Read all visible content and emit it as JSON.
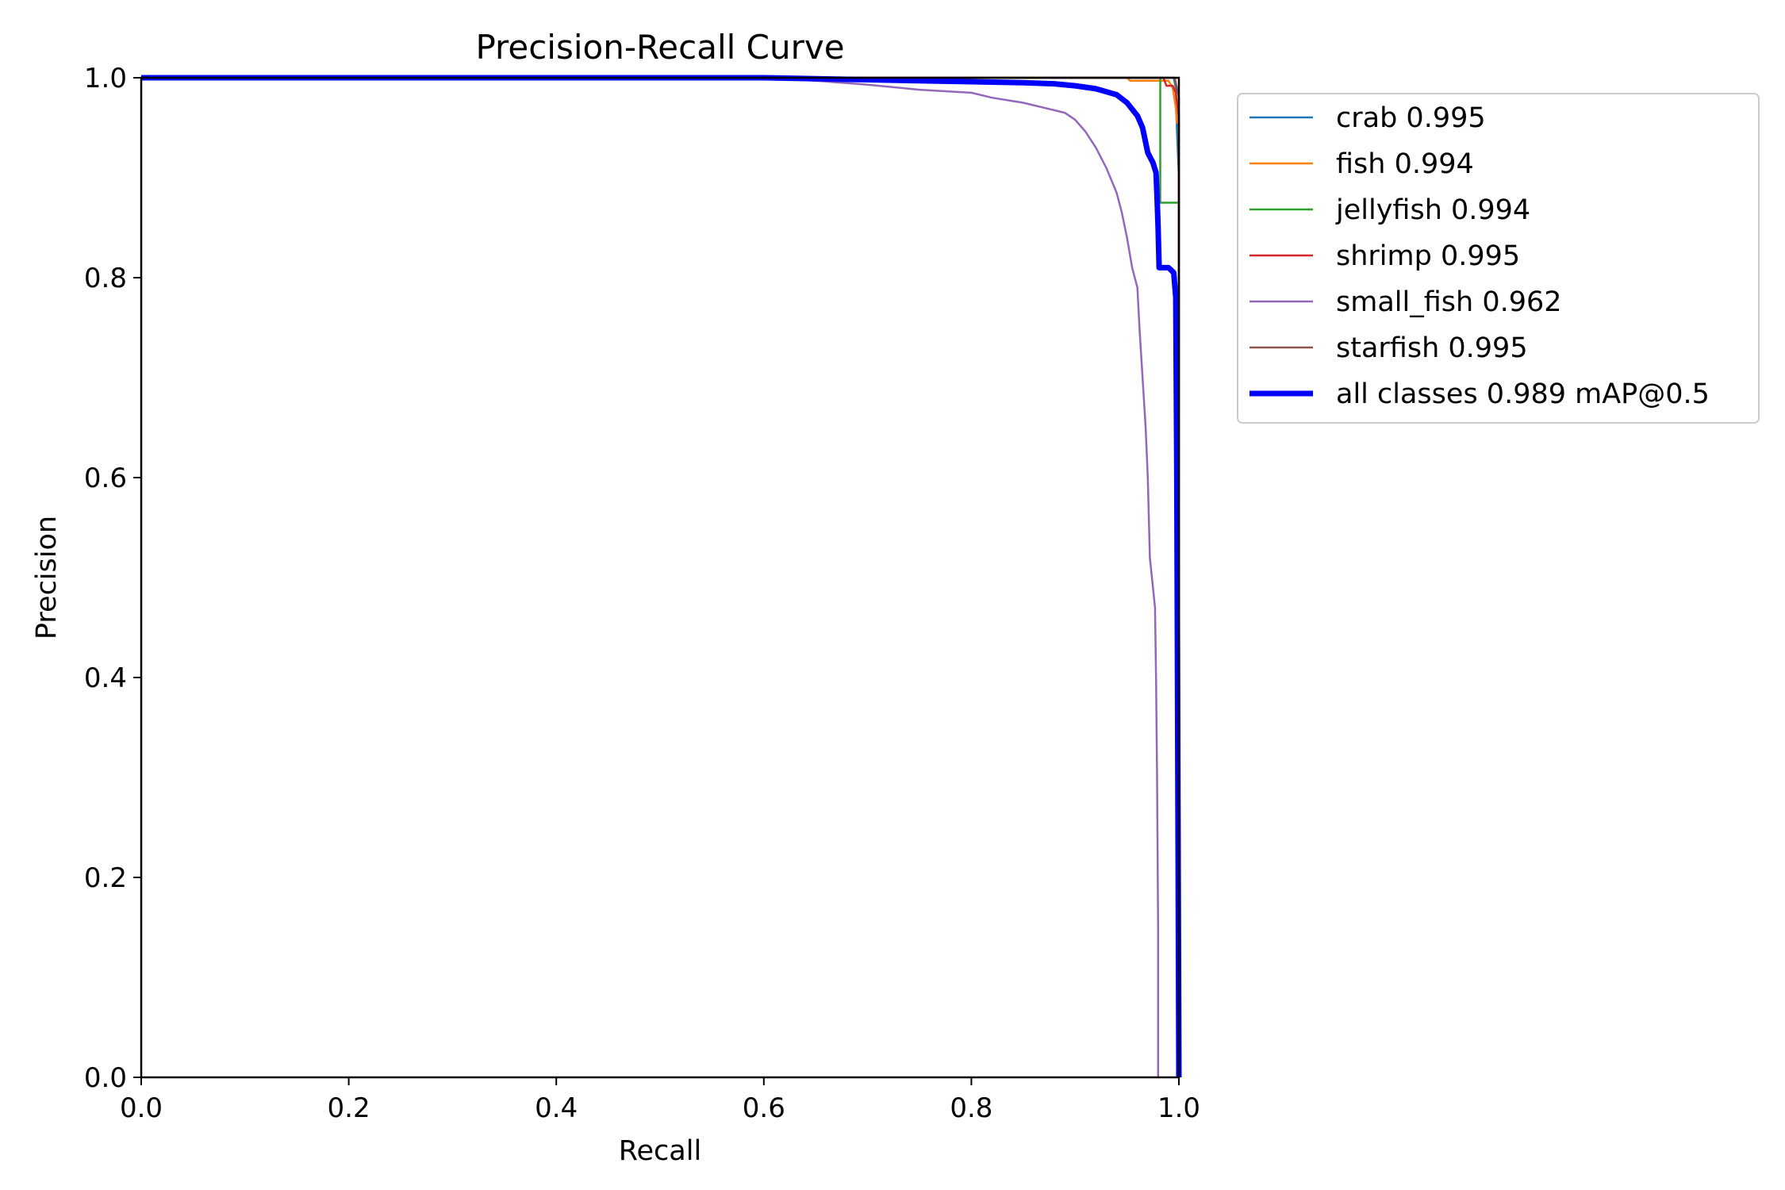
{
  "chart_data": {
    "type": "line",
    "title": "Precision-Recall Curve",
    "xlabel": "Recall",
    "ylabel": "Precision",
    "xlim": [
      0,
      1
    ],
    "ylim": [
      0,
      1
    ],
    "xticks": [
      "0.0",
      "0.2",
      "0.4",
      "0.6",
      "0.8",
      "1.0"
    ],
    "yticks": [
      "0.0",
      "0.2",
      "0.4",
      "0.6",
      "0.8",
      "1.0"
    ],
    "grid": false,
    "legend_position": "outside-top-right",
    "series": [
      {
        "name": "crab 0.995",
        "color": "#1f77b4",
        "width": "thin",
        "points": [
          [
            0,
            1.0
          ],
          [
            0.995,
            1.0
          ],
          [
            0.997,
            0.99
          ],
          [
            0.998,
            0.95
          ],
          [
            1.0,
            0.9
          ],
          [
            1.0,
            0.0
          ]
        ]
      },
      {
        "name": "fish 0.994",
        "color": "#ff7f0e",
        "width": "thin",
        "points": [
          [
            0,
            1.0
          ],
          [
            0.95,
            1.0
          ],
          [
            0.953,
            0.997
          ],
          [
            0.99,
            0.997
          ],
          [
            0.994,
            0.99
          ],
          [
            0.997,
            0.97
          ],
          [
            0.998,
            0.955
          ],
          [
            1.0,
            0.955
          ],
          [
            1.0,
            0.0
          ]
        ]
      },
      {
        "name": "jellyfish 0.994",
        "color": "#2ca02c",
        "width": "thin",
        "points": [
          [
            0,
            1.0
          ],
          [
            0.982,
            1.0
          ],
          [
            0.982,
            0.875
          ],
          [
            1.0,
            0.875
          ],
          [
            1.0,
            0.0
          ]
        ]
      },
      {
        "name": "shrimp 0.995",
        "color": "#d62728",
        "width": "thin",
        "points": [
          [
            0,
            1.0
          ],
          [
            0.985,
            1.0
          ],
          [
            0.988,
            0.992
          ],
          [
            0.994,
            0.992
          ],
          [
            0.997,
            0.985
          ],
          [
            1.0,
            0.96
          ],
          [
            1.0,
            0.0
          ]
        ]
      },
      {
        "name": "small_fish 0.962",
        "color": "#9467bd",
        "width": "thin",
        "points": [
          [
            0,
            1.0
          ],
          [
            0.6,
            1.0
          ],
          [
            0.65,
            0.997
          ],
          [
            0.7,
            0.993
          ],
          [
            0.75,
            0.988
          ],
          [
            0.8,
            0.985
          ],
          [
            0.82,
            0.98
          ],
          [
            0.85,
            0.975
          ],
          [
            0.87,
            0.97
          ],
          [
            0.89,
            0.965
          ],
          [
            0.9,
            0.958
          ],
          [
            0.91,
            0.946
          ],
          [
            0.92,
            0.93
          ],
          [
            0.93,
            0.91
          ],
          [
            0.94,
            0.885
          ],
          [
            0.945,
            0.865
          ],
          [
            0.95,
            0.84
          ],
          [
            0.955,
            0.81
          ],
          [
            0.96,
            0.79
          ],
          [
            0.962,
            0.75
          ],
          [
            0.965,
            0.7
          ],
          [
            0.968,
            0.65
          ],
          [
            0.97,
            0.6
          ],
          [
            0.972,
            0.52
          ],
          [
            0.975,
            0.49
          ],
          [
            0.977,
            0.47
          ],
          [
            0.978,
            0.4
          ],
          [
            0.979,
            0.3
          ],
          [
            0.98,
            0.15
          ],
          [
            0.98,
            0.0
          ]
        ]
      },
      {
        "name": "starfish 0.995",
        "color": "#8c564b",
        "width": "thin",
        "points": [
          [
            0,
            1.0
          ],
          [
            0.996,
            1.0
          ],
          [
            0.998,
            0.99
          ],
          [
            1.0,
            0.98
          ],
          [
            1.0,
            0.0
          ]
        ]
      },
      {
        "name": "all classes 0.989 mAP@0.5",
        "color": "#0000ff",
        "width": "thick",
        "points": [
          [
            0,
            1.0
          ],
          [
            0.6,
            1.0
          ],
          [
            0.7,
            0.998
          ],
          [
            0.8,
            0.996
          ],
          [
            0.85,
            0.995
          ],
          [
            0.88,
            0.994
          ],
          [
            0.9,
            0.992
          ],
          [
            0.92,
            0.989
          ],
          [
            0.94,
            0.983
          ],
          [
            0.95,
            0.975
          ],
          [
            0.96,
            0.962
          ],
          [
            0.965,
            0.95
          ],
          [
            0.97,
            0.925
          ],
          [
            0.975,
            0.915
          ],
          [
            0.978,
            0.905
          ],
          [
            0.979,
            0.88
          ],
          [
            0.98,
            0.85
          ],
          [
            0.981,
            0.81
          ],
          [
            0.99,
            0.81
          ],
          [
            0.995,
            0.805
          ],
          [
            0.997,
            0.78
          ],
          [
            0.998,
            0.6
          ],
          [
            0.999,
            0.3
          ],
          [
            1.0,
            0.0
          ]
        ]
      }
    ]
  }
}
